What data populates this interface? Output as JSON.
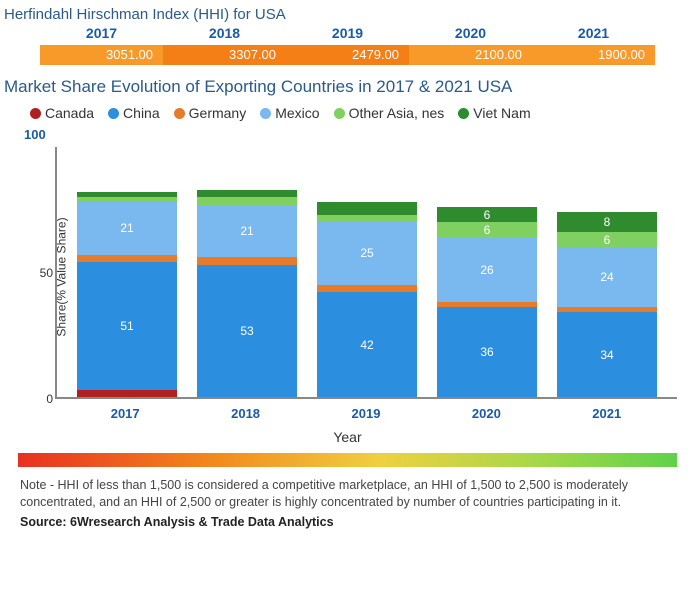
{
  "hhi": {
    "title": "Herfindahl Hirschman Index (HHI) for USA",
    "years": [
      "2017",
      "2018",
      "2019",
      "2020",
      "2021"
    ],
    "values": [
      "3051.00",
      "3307.00",
      "2479.00",
      "2100.00",
      "1900.00"
    ],
    "cell_colors": [
      "#f79a2a",
      "#f57f17",
      "#f57f17",
      "#f79a2a",
      "#f79a2a"
    ]
  },
  "market": {
    "title": "Market Share Evolution of Exporting Countries in 2017 & 2021 USA",
    "legend": [
      {
        "label": "Canada",
        "color": "#b02020"
      },
      {
        "label": "China",
        "color": "#2b8ede"
      },
      {
        "label": "Germany",
        "color": "#e87b2a"
      },
      {
        "label": "Mexico",
        "color": "#7ab8f0"
      },
      {
        "label": "Other Asia, nes",
        "color": "#7fd060"
      },
      {
        "label": "Viet Nam",
        "color": "#2e8b2e"
      }
    ],
    "y_max_label": "100",
    "y_label": "Share(% Value Share)",
    "y_ticks": [
      {
        "label": "50",
        "pos_pct": 50
      },
      {
        "label": "0",
        "pos_pct": 0
      }
    ],
    "y_max": 100,
    "x_label": "Year",
    "categories": [
      "2017",
      "2018",
      "2019",
      "2020",
      "2021"
    ],
    "stack_order": [
      "Canada",
      "China",
      "Germany",
      "Mexico",
      "Other Asia, nes",
      "Viet Nam"
    ],
    "series_colors": {
      "Canada": "#b02020",
      "China": "#2b8ede",
      "Germany": "#e87b2a",
      "Mexico": "#7ab8f0",
      "Other Asia, nes": "#7fd060",
      "Viet Nam": "#2e8b2e"
    },
    "data": {
      "2017": {
        "Canada": 3,
        "China": 51,
        "Germany": 3,
        "Mexico": 21,
        "Other Asia, nes": 2,
        "Viet Nam": 2
      },
      "2018": {
        "Canada": 0,
        "China": 53,
        "Germany": 3,
        "Mexico": 21,
        "Other Asia, nes": 3,
        "Viet Nam": 3
      },
      "2019": {
        "Canada": 0,
        "China": 42,
        "Germany": 3,
        "Mexico": 25,
        "Other Asia, nes": 3,
        "Viet Nam": 5
      },
      "2020": {
        "Canada": 0,
        "China": 36,
        "Germany": 2,
        "Mexico": 26,
        "Other Asia, nes": 6,
        "Viet Nam": 6
      },
      "2021": {
        "Canada": 0,
        "China": 34,
        "Germany": 2,
        "Mexico": 24,
        "Other Asia, nes": 6,
        "Viet Nam": 8
      }
    },
    "value_labels": {
      "2017": {
        "China": "51",
        "Mexico": "21"
      },
      "2018": {
        "China": "53",
        "Mexico": "21"
      },
      "2019": {
        "China": "42",
        "Mexico": "25"
      },
      "2020": {
        "China": "36",
        "Mexico": "26",
        "Other Asia, nes": "6",
        "Viet Nam": "6"
      },
      "2021": {
        "China": "34",
        "Mexico": "24",
        "Other Asia, nes": "6",
        "Viet Nam": "8"
      }
    }
  },
  "gradient": {
    "css": "linear-gradient(to right, #e83020 0%, #f28a1e 30%, #f0d040 55%, #a8d84a 78%, #5fd24a 100%)"
  },
  "note": "Note - HHI of less than 1,500 is considered a competitive marketplace, an HHI of 1,500 to 2,500 is moderately concentrated, and an HHI of 2,500 or greater is highly concentrated by number of countries participating in it.",
  "source": "Source: 6Wresearch Analysis & Trade Data Analytics"
}
